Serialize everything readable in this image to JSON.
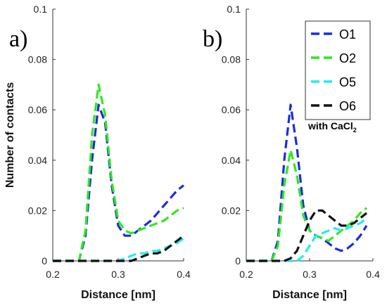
{
  "chart_data": [
    {
      "type": "line",
      "panel_label": "a)",
      "xlabel": "Distance [nm]",
      "ylabel": "Number of contacts",
      "xlim": [
        0.2,
        0.4
      ],
      "ylim": [
        0,
        0.1
      ],
      "x_ticks": [
        "0.2",
        "0.3",
        "0.4"
      ],
      "y_ticks": [
        "0",
        "0.02",
        "0.04",
        "0.06",
        "0.08",
        "0.1"
      ],
      "grid": false,
      "line_style": "dashed",
      "series": [
        {
          "name": "O1",
          "color": "#1a2fd6",
          "x": [
            0.2,
            0.24,
            0.25,
            0.26,
            0.27,
            0.28,
            0.29,
            0.3,
            0.31,
            0.32,
            0.33,
            0.34,
            0.35,
            0.36,
            0.37,
            0.38,
            0.39,
            0.4
          ],
          "y": [
            0,
            0,
            0.01,
            0.04,
            0.062,
            0.055,
            0.03,
            0.014,
            0.01,
            0.01,
            0.012,
            0.014,
            0.016,
            0.019,
            0.022,
            0.025,
            0.028,
            0.03
          ]
        },
        {
          "name": "O2",
          "color": "#2fe81f",
          "x": [
            0.2,
            0.24,
            0.25,
            0.26,
            0.27,
            0.28,
            0.29,
            0.3,
            0.31,
            0.32,
            0.33,
            0.34,
            0.35,
            0.36,
            0.37,
            0.38,
            0.39,
            0.4
          ],
          "y": [
            0,
            0,
            0.012,
            0.05,
            0.07,
            0.058,
            0.032,
            0.016,
            0.012,
            0.011,
            0.012,
            0.013,
            0.014,
            0.015,
            0.016,
            0.018,
            0.02,
            0.021
          ]
        },
        {
          "name": "O5",
          "color": "#22ecf2",
          "x": [
            0.2,
            0.3,
            0.31,
            0.32,
            0.33,
            0.34,
            0.35,
            0.36,
            0.37,
            0.38,
            0.39,
            0.4
          ],
          "y": [
            0,
            0,
            0.001,
            0.002,
            0.003,
            0.003,
            0.004,
            0.004,
            0.005,
            0.006,
            0.007,
            0.009
          ]
        },
        {
          "name": "O6",
          "color": "#111111",
          "x": [
            0.2,
            0.32,
            0.33,
            0.34,
            0.35,
            0.36,
            0.37,
            0.38,
            0.39,
            0.4
          ],
          "y": [
            0,
            0,
            0.001,
            0.002,
            0.003,
            0.003,
            0.004,
            0.006,
            0.008,
            0.01
          ]
        }
      ]
    },
    {
      "type": "line",
      "panel_label": "b)",
      "xlabel": "Distance [nm]",
      "ylabel": "",
      "xlim": [
        0.2,
        0.4
      ],
      "ylim": [
        0,
        0.1
      ],
      "x_ticks": [
        "0.2",
        "0.3",
        "0.4"
      ],
      "y_ticks": [
        "0",
        "0.02",
        "0.04",
        "0.06",
        "0.08",
        "0.1"
      ],
      "grid": false,
      "line_style": "dashed",
      "legend": {
        "placement": "top-right",
        "entries": [
          "O1",
          "O2",
          "O5",
          "O6"
        ]
      },
      "annotation": {
        "text": "with CaCl",
        "subscript": "2"
      },
      "series": [
        {
          "name": "O1",
          "color": "#1a2fd6",
          "x": [
            0.2,
            0.24,
            0.25,
            0.26,
            0.27,
            0.28,
            0.29,
            0.3,
            0.31,
            0.32,
            0.33,
            0.34,
            0.35,
            0.36,
            0.37,
            0.38,
            0.39
          ],
          "y": [
            0,
            0,
            0.008,
            0.04,
            0.062,
            0.045,
            0.022,
            0.012,
            0.01,
            0.009,
            0.007,
            0.005,
            0.004,
            0.005,
            0.007,
            0.01,
            0.014
          ]
        },
        {
          "name": "O2",
          "color": "#2fe81f",
          "x": [
            0.2,
            0.24,
            0.25,
            0.26,
            0.27,
            0.28,
            0.29,
            0.3,
            0.31,
            0.32,
            0.33,
            0.34,
            0.35,
            0.36,
            0.37,
            0.38,
            0.39
          ],
          "y": [
            0,
            0,
            0.006,
            0.03,
            0.044,
            0.034,
            0.018,
            0.012,
            0.01,
            0.009,
            0.008,
            0.01,
            0.012,
            0.014,
            0.016,
            0.019,
            0.021
          ]
        },
        {
          "name": "O5",
          "color": "#22ecf2",
          "x": [
            0.2,
            0.28,
            0.29,
            0.3,
            0.31,
            0.32,
            0.33,
            0.34,
            0.35,
            0.36,
            0.37,
            0.38,
            0.39
          ],
          "y": [
            0,
            0,
            0.002,
            0.006,
            0.01,
            0.011,
            0.012,
            0.013,
            0.012,
            0.013,
            0.014,
            0.015,
            0.017
          ]
        },
        {
          "name": "O6",
          "color": "#111111",
          "x": [
            0.2,
            0.26,
            0.27,
            0.28,
            0.29,
            0.3,
            0.31,
            0.32,
            0.33,
            0.34,
            0.35,
            0.36,
            0.37,
            0.38,
            0.39
          ],
          "y": [
            0,
            0,
            0.001,
            0.004,
            0.01,
            0.016,
            0.02,
            0.02,
            0.018,
            0.016,
            0.014,
            0.014,
            0.015,
            0.017,
            0.019
          ]
        }
      ]
    }
  ]
}
